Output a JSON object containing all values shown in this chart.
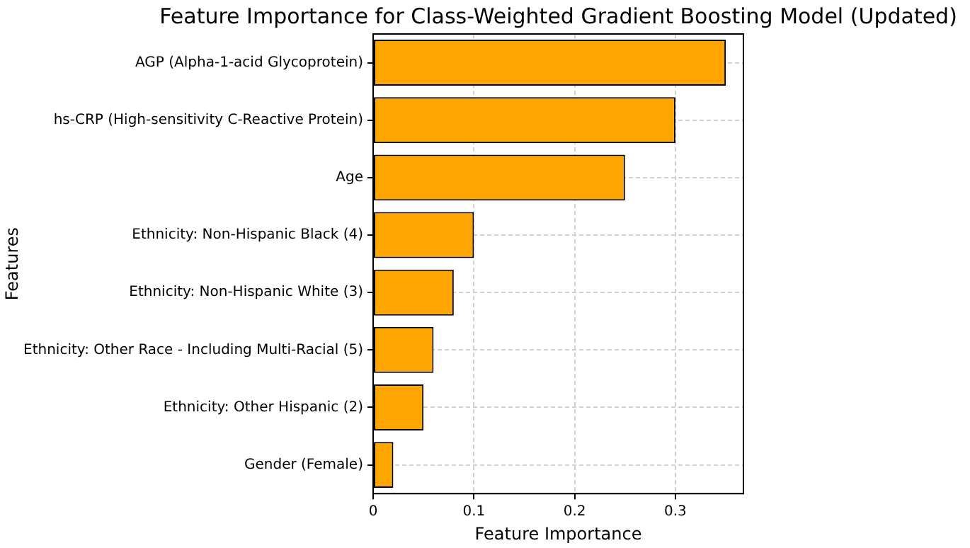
{
  "chart_data": {
    "type": "bar",
    "orientation": "horizontal",
    "title": "Feature Importance for Class-Weighted Gradient Boosting Model (Updated)",
    "xlabel": "Feature Importance",
    "ylabel": "Features",
    "categories": [
      "AGP (Alpha-1-acid Glycoprotein)",
      "hs-CRP (High-sensitivity C-Reactive Protein)",
      "Age",
      "Ethnicity: Non-Hispanic Black (4)",
      "Ethnicity: Non-Hispanic White (3)",
      "Ethnicity: Other Race - Including Multi-Racial (5)",
      "Ethnicity: Other Hispanic (2)",
      "Gender (Female)"
    ],
    "values": [
      0.35,
      0.3,
      0.25,
      0.1,
      0.08,
      0.06,
      0.05,
      0.02
    ],
    "color": "#ffa500",
    "xlim": [
      0,
      0.3675
    ],
    "xticks": [
      0,
      0.1,
      0.2,
      0.3
    ],
    "grid": true,
    "legend": false
  }
}
